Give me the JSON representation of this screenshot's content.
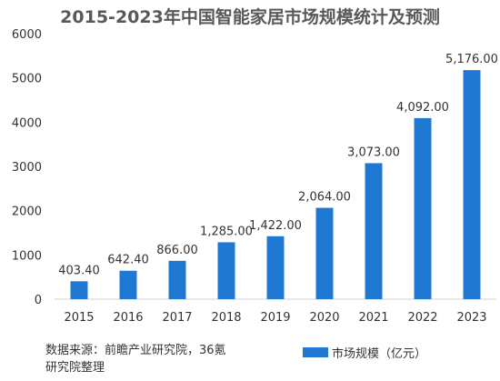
{
  "colors": {
    "bar": "#1f78d1",
    "axis": "#d0d0d0",
    "text": "#333333",
    "title": "#595959"
  },
  "source": {
    "line1": "数据来源：前瞻产业研究院，36氪",
    "line2": "研究院整理"
  },
  "chart_data": {
    "type": "bar",
    "title": "2015-2023年中国智能家居市场规模统计及预测",
    "xlabel": "",
    "ylabel": "",
    "categories": [
      "2015",
      "2016",
      "2017",
      "2018",
      "2019",
      "2020",
      "2021",
      "2022",
      "2023"
    ],
    "series": [
      {
        "name": "市场规模（亿元）",
        "values": [
          403.4,
          642.4,
          866.0,
          1285.0,
          1422.0,
          2064.0,
          3073.0,
          4092.0,
          5176.0
        ]
      }
    ],
    "value_labels": [
      "403.40",
      "642.40",
      "866.00",
      "1,285.00",
      "1,422.00",
      "2,064.00",
      "3,073.00",
      "4,092.00",
      "5,176.00"
    ],
    "ylim": [
      0,
      6000
    ],
    "yticks": [
      "0",
      "1000",
      "2000",
      "3000",
      "4000",
      "5000",
      "6000"
    ],
    "grid": false,
    "legend_position": "bottom-right"
  }
}
